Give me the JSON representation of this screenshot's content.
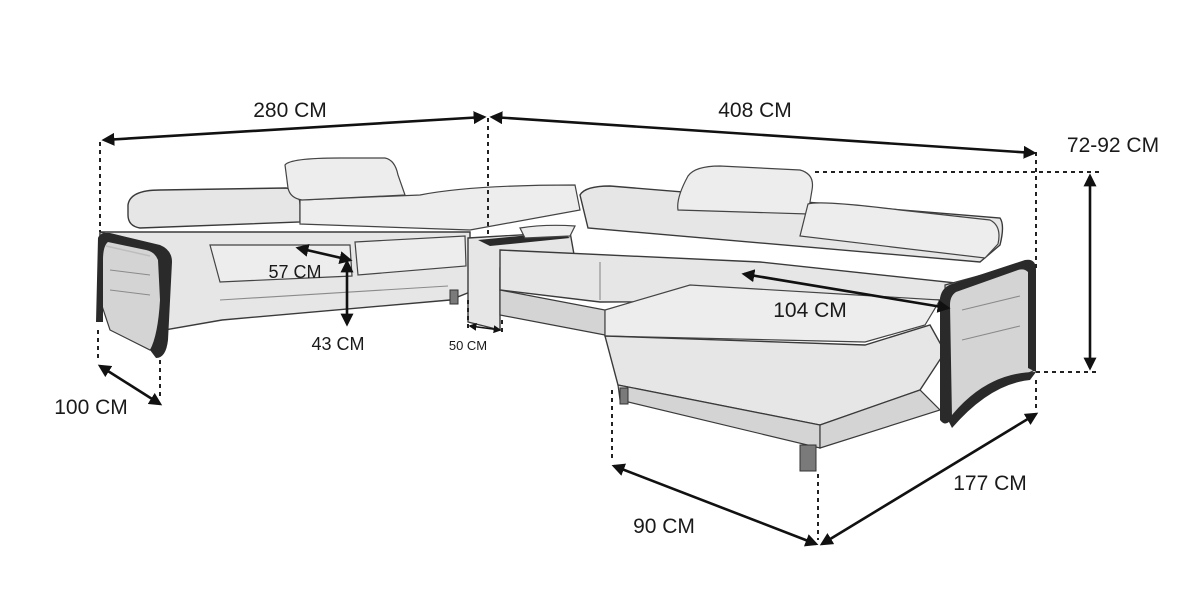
{
  "dimensions": {
    "left_length": "280 CM",
    "back_length": "408 CM",
    "height_range": "72-92 CM",
    "seat_depth": "57 CM",
    "seat_height": "43 CM",
    "corner_table": "50 CM",
    "left_depth": "100 CM",
    "chaise_width": "104 CM",
    "chaise_front": "90 CM",
    "chaise_length": "177 CM"
  },
  "colors": {
    "lines": "#111111",
    "upholstery": "#e6e6e6",
    "frame": "#2a2a2a"
  }
}
